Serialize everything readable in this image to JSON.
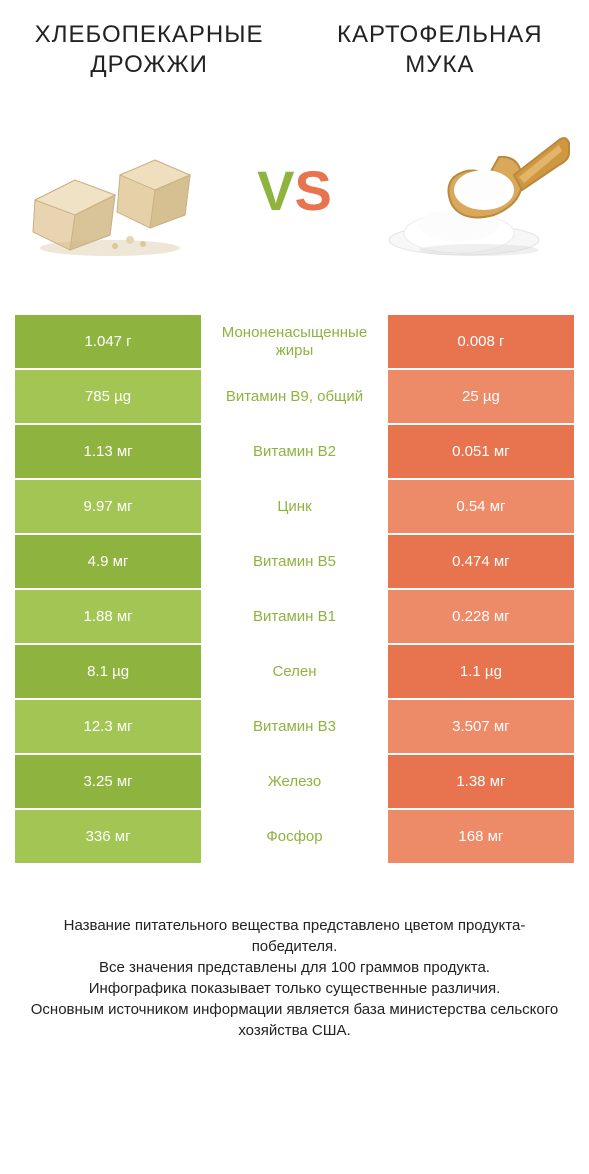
{
  "titles": {
    "left": "ХЛЕБОПЕКАРНЫЕ ДРОЖЖИ",
    "right": "КАРТОФЕЛЬНАЯ МУКА"
  },
  "vs": {
    "v": "V",
    "s": "S"
  },
  "colors": {
    "green_dark": "#8fb33f",
    "green_light": "#a3c554",
    "orange_dark": "#e8734f",
    "orange_light": "#ed8a68",
    "label_green": "#8fb33f",
    "label_orange": "#e8734f",
    "text": "#222222",
    "bg": "#ffffff"
  },
  "rows": [
    {
      "left": "1.047 г",
      "mid": "Мононенасыщенные жиры",
      "right": "0.008 г",
      "winner": "left"
    },
    {
      "left": "785 µg",
      "mid": "Витамин B9, общий",
      "right": "25 µg",
      "winner": "left"
    },
    {
      "left": "1.13 мг",
      "mid": "Витамин B2",
      "right": "0.051 мг",
      "winner": "left"
    },
    {
      "left": "9.97 мг",
      "mid": "Цинк",
      "right": "0.54 мг",
      "winner": "left"
    },
    {
      "left": "4.9 мг",
      "mid": "Витамин B5",
      "right": "0.474 мг",
      "winner": "left"
    },
    {
      "left": "1.88 мг",
      "mid": "Витамин B1",
      "right": "0.228 мг",
      "winner": "left"
    },
    {
      "left": "8.1 µg",
      "mid": "Селен",
      "right": "1.1 µg",
      "winner": "left"
    },
    {
      "left": "12.3 мг",
      "mid": "Витамин B3",
      "right": "3.507 мг",
      "winner": "left"
    },
    {
      "left": "3.25 мг",
      "mid": "Железо",
      "right": "1.38 мг",
      "winner": "left"
    },
    {
      "left": "336 мг",
      "mid": "Фосфор",
      "right": "168 мг",
      "winner": "left"
    }
  ],
  "footer": {
    "l1": "Название питательного вещества представлено цветом продукта-победителя.",
    "l2": "Все значения представлены для 100 граммов продукта.",
    "l3": "Инфографика показывает только существенные различия.",
    "l4": "Основным источником информации является база министерства сельского хозяйства США."
  }
}
